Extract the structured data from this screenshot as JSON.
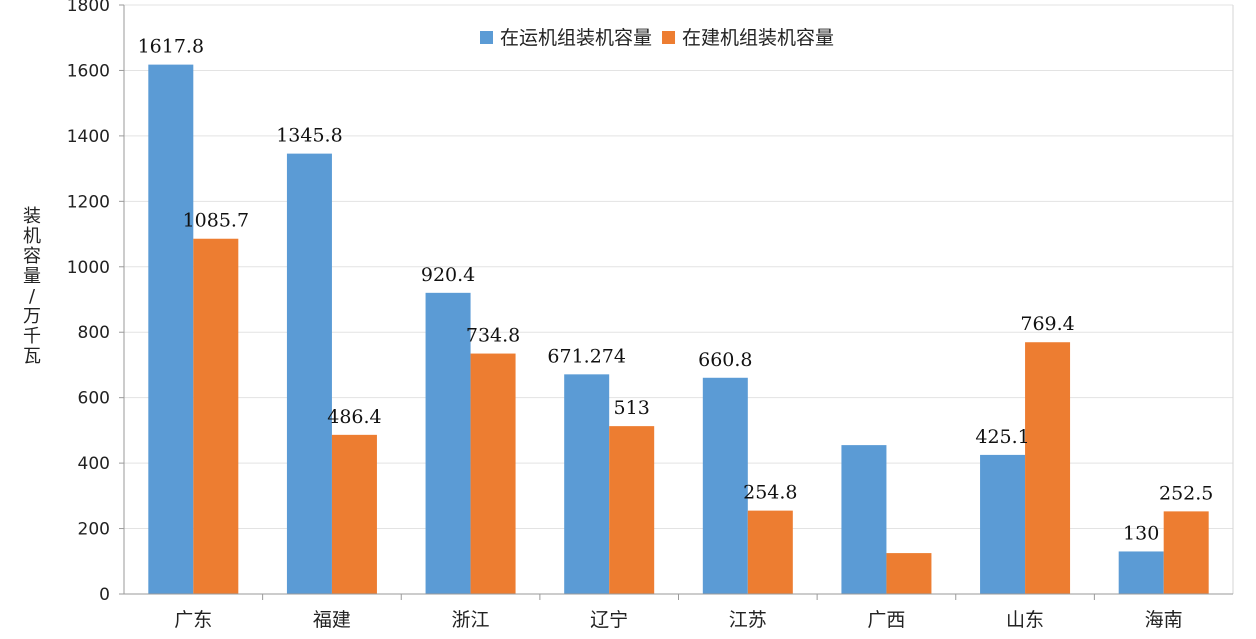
{
  "chart_data": {
    "type": "bar",
    "categories": [
      "广东",
      "福建",
      "浙江",
      "辽宁",
      "江苏",
      "广西",
      "山东",
      "海南"
    ],
    "series": [
      {
        "name": "在运机组装机容量",
        "color": "#5B9BD5",
        "values": [
          1617.8,
          1345.8,
          920.4,
          671.274,
          660.8,
          455,
          425.1,
          130
        ],
        "labels": [
          "1617.8",
          "1345.8",
          "920.4",
          "671.274",
          "660.8",
          "",
          "425.1",
          "130"
        ]
      },
      {
        "name": "在建机组装机容量",
        "color": "#ED7D31",
        "values": [
          1085.7,
          486.4,
          734.8,
          513,
          254.8,
          125,
          769.4,
          252.5
        ],
        "labels": [
          "1085.7",
          "486.4",
          "734.8",
          "513",
          "254.8",
          "",
          "769.4",
          "252.5"
        ]
      }
    ],
    "ylabel": "装机容量/万千瓦",
    "ylim": [
      0,
      1800
    ],
    "yticks": [
      0,
      200,
      400,
      600,
      800,
      1000,
      1200,
      1400,
      1600,
      1800
    ],
    "grid": true,
    "legend_position": "top-center"
  }
}
